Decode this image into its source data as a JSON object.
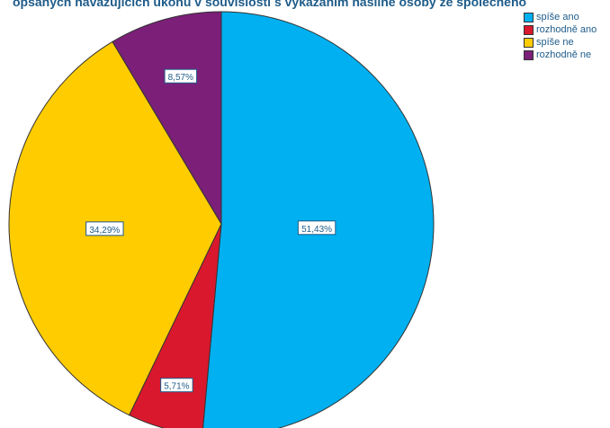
{
  "chart_data": {
    "type": "pie",
    "title": "opsaných navazujících úkonů v souvislosti s vykázáním násilné osoby ze společného",
    "slices": [
      {
        "name": "spíše ano",
        "value": 51.43,
        "label": "51,43%",
        "color": "#00b0f0"
      },
      {
        "name": "rozhodně ano",
        "value": 5.71,
        "label": "5,71%",
        "color": "#d9182d"
      },
      {
        "name": "spíše ne",
        "value": 34.29,
        "label": "34,29%",
        "color": "#ffcc00"
      },
      {
        "name": "rozhodně ne",
        "value": 8.57,
        "label": "8,57%",
        "color": "#7b1f78"
      }
    ],
    "legend": {
      "position": "top-right",
      "entries": [
        {
          "label": "spíše ano",
          "color": "#00b0f0"
        },
        {
          "label": "rozhodně ano",
          "color": "#d9182d"
        },
        {
          "label": "spíše ne",
          "color": "#ffcc00"
        },
        {
          "label": "rozhodně ne",
          "color": "#7b1f78"
        }
      ]
    }
  }
}
